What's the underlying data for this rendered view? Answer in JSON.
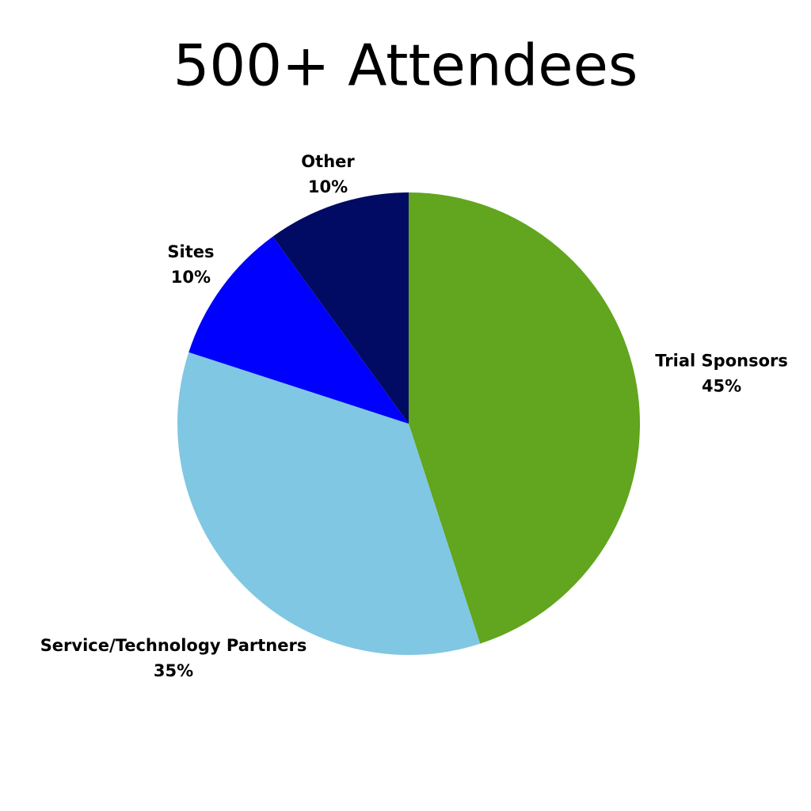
{
  "chart_data": {
    "type": "pie",
    "title": "500+ Attendees",
    "categories": [
      "Trial Sponsors",
      "Service/Technology Partners",
      "Sites",
      "Other"
    ],
    "values": [
      45,
      35,
      10,
      10
    ],
    "value_labels": [
      "45%",
      "35%",
      "10%",
      "10%"
    ],
    "colors": [
      "#62a51e",
      "#80c7e3",
      "#0000ff",
      "#020b63"
    ]
  }
}
